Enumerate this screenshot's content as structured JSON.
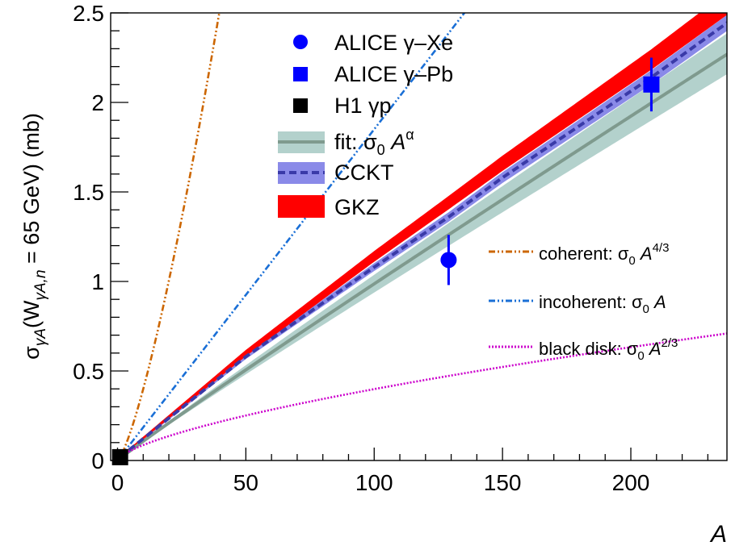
{
  "chart_data": {
    "type": "line",
    "title": "",
    "xlabel": "A",
    "ylabel": {
      "sigma": "σ",
      "sigma_sub": "γA",
      "paren_open": "(W",
      "w_sub": "γA,n",
      "rest": " = 65 GeV) (mb)"
    },
    "xlim": [
      0,
      240
    ],
    "ylim": [
      0,
      2.5
    ],
    "x_ticks": [
      0,
      50,
      100,
      150,
      200
    ],
    "x_tick_labels": [
      "0",
      "50",
      "100",
      "150",
      "200"
    ],
    "y_ticks": [
      0,
      0.5,
      1,
      1.5,
      2,
      2.5
    ],
    "y_tick_labels": [
      "0",
      "0.5",
      "1",
      "1.5",
      "2",
      "2.5"
    ],
    "grid": false,
    "sigma0_mb": 0.0185,
    "fit": {
      "alpha": 0.963,
      "band_low_at_240": 2.18,
      "band_high_at_240": 2.41
    },
    "points": [
      {
        "name": "ALICE γ–Xe",
        "x": 129,
        "y": 1.12,
        "yerr": 0.14,
        "marker": "circle",
        "color": "#0000ff"
      },
      {
        "name": "ALICE γ–Pb",
        "x": 208,
        "y": 2.1,
        "yerr": 0.15,
        "marker": "square",
        "color": "#0000ff"
      },
      {
        "name": "H1 γp",
        "x": 1,
        "y": 0.0185,
        "yerr": 0,
        "marker": "square",
        "color": "#000000"
      }
    ],
    "series": [
      {
        "name": "coherent: σ0 A4/3",
        "key": "coherent",
        "exponent": 1.3333,
        "color": "#cc6600",
        "dash": "dash-dot-dot"
      },
      {
        "name": "incoherent: σ0 A",
        "key": "incoherent",
        "exponent": 1.0,
        "color": "#1a6fd6",
        "dash": "dash-dot-dot"
      },
      {
        "name": "black disk: σ0 A2/3",
        "key": "blackdisk",
        "exponent": 0.6667,
        "color": "#cc00cc",
        "dash": "dotted"
      }
    ],
    "models": [
      {
        "name": "CCKT",
        "color": "#8a8ae8",
        "line_color": "#3a3aa8",
        "points": [
          [
            1,
            0.0185
          ],
          [
            50,
            0.58
          ],
          [
            100,
            1.08
          ],
          [
            129,
            1.36
          ],
          [
            150,
            1.58
          ],
          [
            208,
            2.14
          ],
          [
            240,
            2.47
          ]
        ],
        "band_half_width": 0.04
      },
      {
        "name": "GKZ",
        "color": "#ff0000",
        "points": [
          [
            1,
            0.0185
          ],
          [
            50,
            0.6
          ],
          [
            100,
            1.14
          ],
          [
            129,
            1.44
          ],
          [
            150,
            1.66
          ],
          [
            208,
            2.24
          ],
          [
            240,
            2.58
          ]
        ],
        "band_half_width": 0.06
      }
    ],
    "legend_top": {
      "alice_xe": {
        "pre": "ALICE ",
        "gamma": "γ",
        "post": "–Xe"
      },
      "alice_pb": {
        "pre": "ALICE ",
        "gamma": "γ",
        "post": "–Pb"
      },
      "h1": {
        "pre": "H1 ",
        "gamma": "γp"
      },
      "fit": {
        "pre": "fit: σ",
        "sub": "0",
        "mid": " A",
        "sup": "α"
      },
      "cckt": "CCKT",
      "gkz": "GKZ"
    },
    "legend_right": {
      "coherent": {
        "pre": "coherent: σ",
        "sub": "0",
        "mid": " A",
        "sup": "4/3"
      },
      "incoherent": {
        "pre": "incoherent: σ",
        "sub": "0",
        "mid": " A",
        "sup": ""
      },
      "blackdisk": {
        "pre": "black disk: σ",
        "sub": "0",
        "mid": " A",
        "sup": "2/3"
      }
    },
    "colors": {
      "fit_band": "#b3d1cc",
      "fit_line": "#7f9a8e",
      "axis": "#000000"
    }
  }
}
